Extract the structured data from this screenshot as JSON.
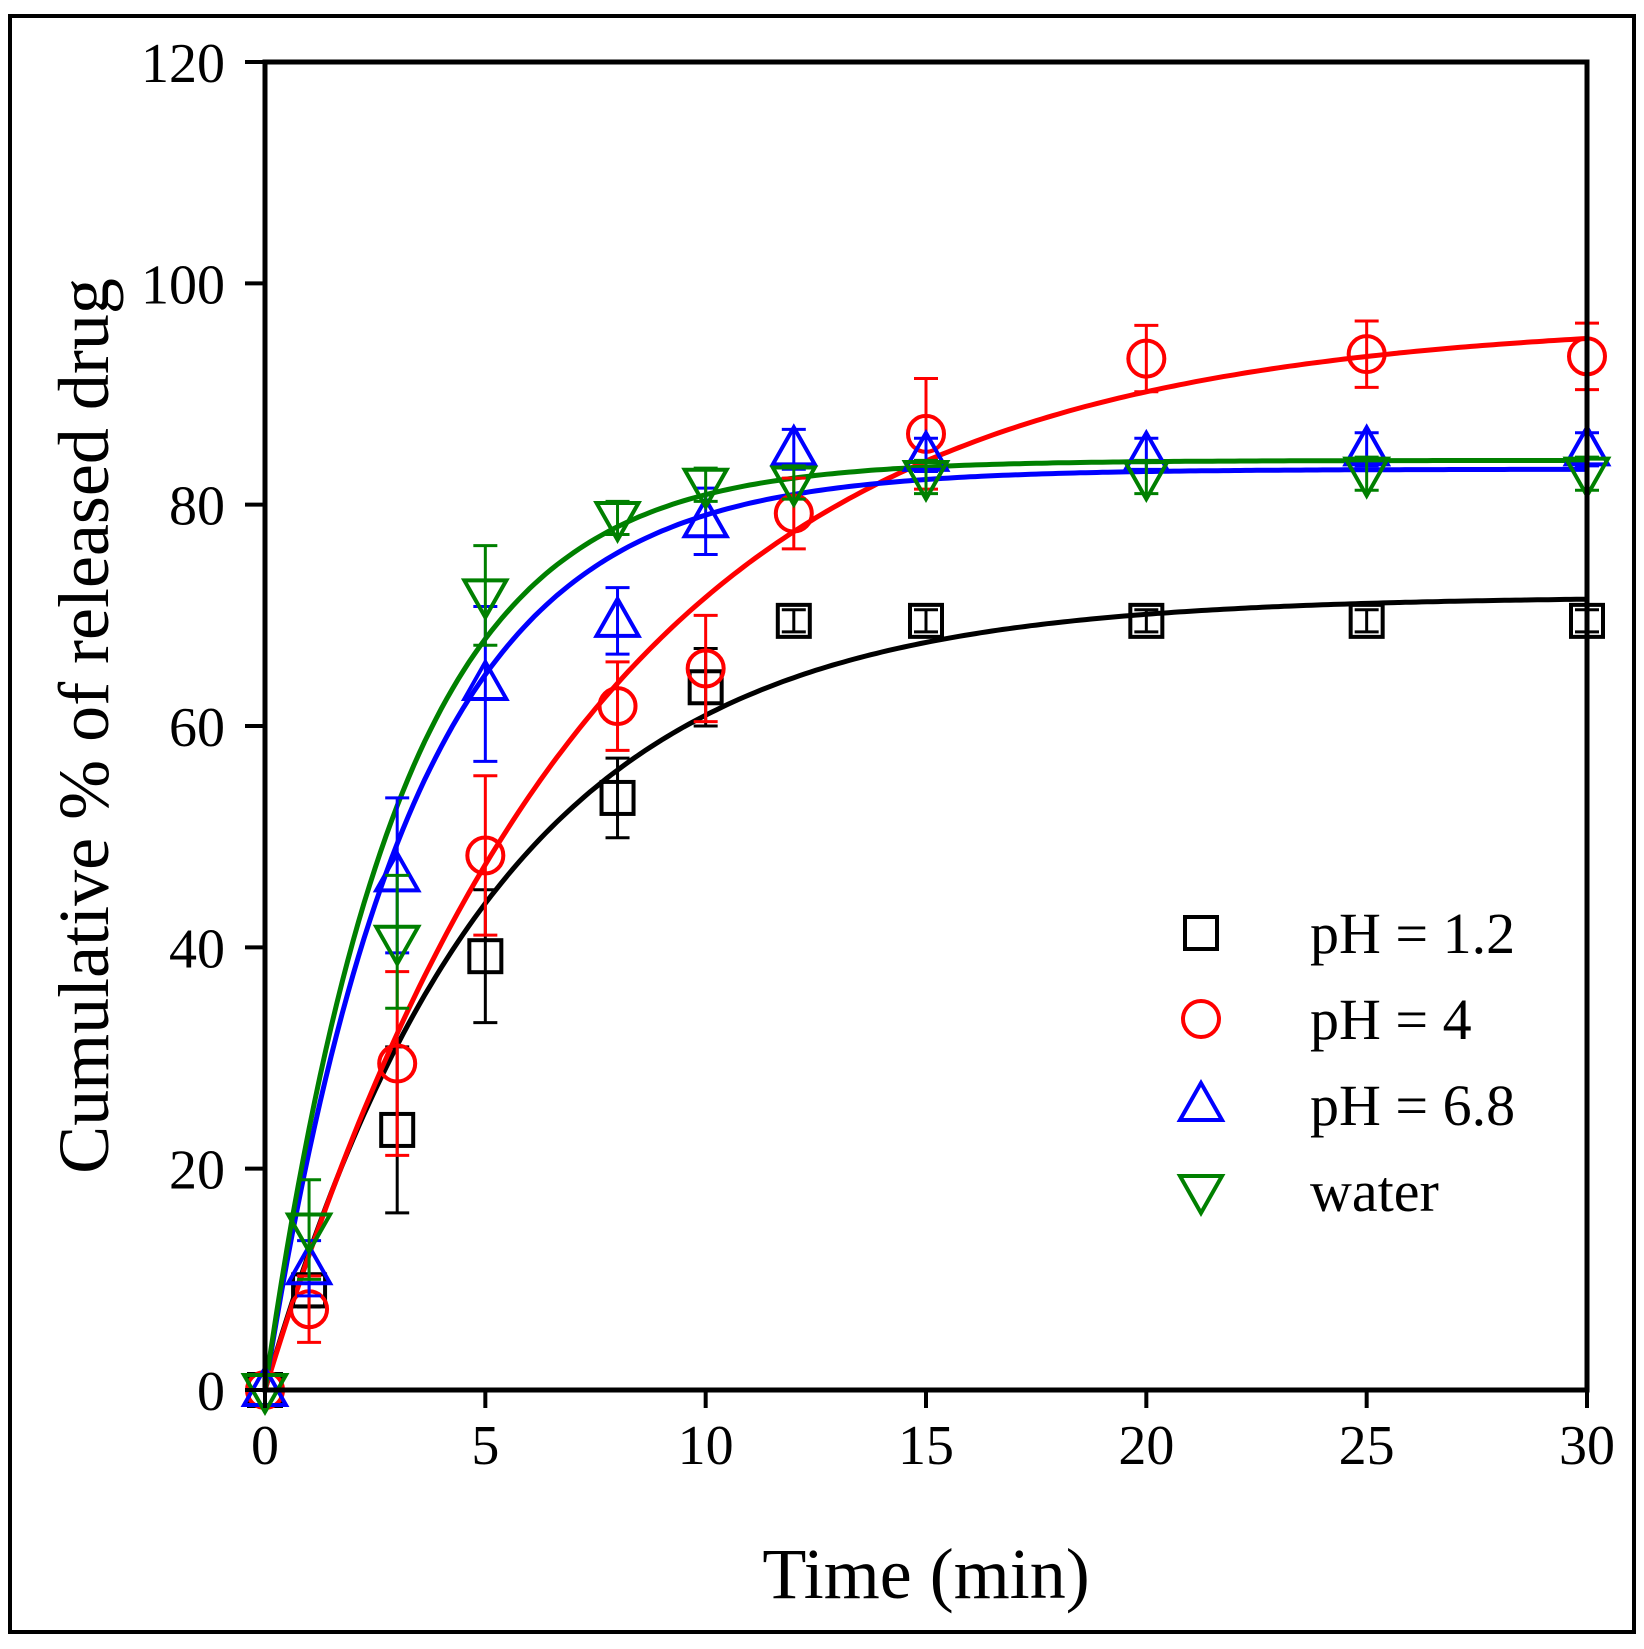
{
  "chart_data": {
    "type": "scatter",
    "title": "",
    "xlabel": "Time (min)",
    "ylabel": "Cumulative % of released drug",
    "xlim": [
      0,
      30
    ],
    "ylim": [
      0,
      120
    ],
    "xticks": [
      0,
      5,
      10,
      15,
      20,
      25,
      30
    ],
    "yticks": [
      0,
      20,
      40,
      60,
      80,
      100,
      120
    ],
    "grid": false,
    "legend_position": "right",
    "series": [
      {
        "name": "pH = 1.2",
        "marker": "square",
        "color": "#000000",
        "x": [
          0,
          1,
          3,
          5,
          8,
          10,
          12,
          15,
          20,
          25,
          30
        ],
        "y": [
          0,
          9,
          23.5,
          39.2,
          53.5,
          63.5,
          69.5,
          69.5,
          69.5,
          69.5,
          69.5
        ],
        "err": [
          0,
          1.5,
          7.5,
          6,
          3.6,
          3.5,
          1,
          1,
          1,
          1,
          1
        ],
        "fit": {
          "ymax": 71.7,
          "k": 0.19
        }
      },
      {
        "name": "pH = 4",
        "marker": "circle",
        "color": "#ff0000",
        "x": [
          0,
          1,
          3,
          5,
          8,
          10,
          12,
          15,
          20,
          25,
          30
        ],
        "y": [
          0,
          7.3,
          29.5,
          48.3,
          61.8,
          65.2,
          79.2,
          86.4,
          93.2,
          93.6,
          93.4
        ],
        "err": [
          0,
          3,
          8.3,
          7.2,
          4,
          4.8,
          3.2,
          5,
          3,
          3,
          3
        ],
        "fit": {
          "ymax": 96.7,
          "k": 0.135
        }
      },
      {
        "name": "pH = 6.8",
        "marker": "triangle-up",
        "color": "#0000ff",
        "x": [
          0,
          1,
          3,
          5,
          8,
          10,
          12,
          15,
          20,
          25,
          30
        ],
        "y": [
          0,
          11,
          46.5,
          63.8,
          69.5,
          78.5,
          85,
          84.5,
          84.5,
          85,
          85
        ],
        "err": [
          0,
          2.5,
          7,
          7,
          3,
          3,
          1.8,
          1.5,
          1.5,
          1.5,
          1.5
        ],
        "fit": {
          "ymax": 83.2,
          "k": 0.3
        }
      },
      {
        "name": "water",
        "marker": "triangle-down",
        "color": "#008000",
        "x": [
          0,
          1,
          3,
          5,
          8,
          10,
          12,
          15,
          20,
          25,
          30
        ],
        "y": [
          0,
          14.5,
          40.5,
          71.8,
          78.8,
          81.8,
          82,
          82.5,
          82.5,
          82.8,
          82.8
        ],
        "err": [
          0,
          4.5,
          6,
          4.5,
          1.5,
          1.5,
          1.5,
          1.5,
          1.5,
          1.5,
          1.5
        ],
        "fit": {
          "ymax": 84,
          "k": 0.33
        }
      }
    ]
  }
}
